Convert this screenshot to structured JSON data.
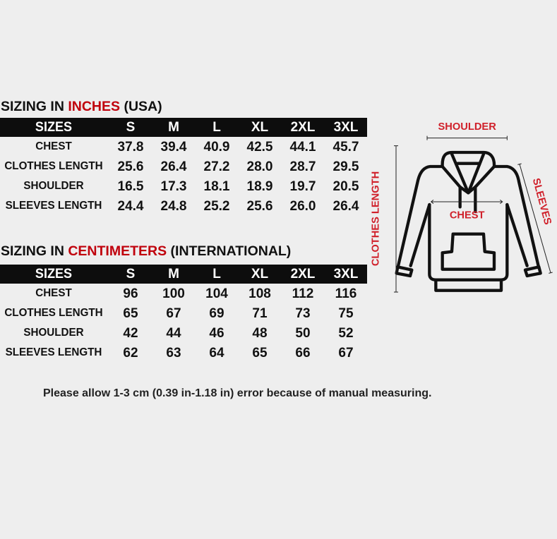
{
  "inches": {
    "title_prefix": "SIZING IN ",
    "title_highlight": "INCHES",
    "title_suffix": " (USA)",
    "header": [
      "SIZES",
      "S",
      "M",
      "L",
      "XL",
      "2XL",
      "3XL"
    ],
    "rows": [
      {
        "label": "CHEST",
        "values": [
          "37.8",
          "39.4",
          "40.9",
          "42.5",
          "44.1",
          "45.7"
        ]
      },
      {
        "label": "CLOTHES LENGTH",
        "values": [
          "25.6",
          "26.4",
          "27.2",
          "28.0",
          "28.7",
          "29.5"
        ]
      },
      {
        "label": "SHOULDER",
        "values": [
          "16.5",
          "17.3",
          "18.1",
          "18.9",
          "19.7",
          "20.5"
        ]
      },
      {
        "label": "SLEEVES LENGTH",
        "values": [
          "24.4",
          "24.8",
          "25.2",
          "25.6",
          "26.0",
          "26.4"
        ]
      }
    ]
  },
  "centimeters": {
    "title_prefix": "SIZING IN ",
    "title_highlight": "CENTIMETERS",
    "title_suffix": " (INTERNATIONAL)",
    "header": [
      "SIZES",
      "S",
      "M",
      "L",
      "XL",
      "2XL",
      "3XL"
    ],
    "rows": [
      {
        "label": "CHEST",
        "values": [
          "96",
          "100",
          "104",
          "108",
          "112",
          "116"
        ]
      },
      {
        "label": "CLOTHES LENGTH",
        "values": [
          "65",
          "67",
          "69",
          "71",
          "73",
          "75"
        ]
      },
      {
        "label": "SHOULDER",
        "values": [
          "42",
          "44",
          "46",
          "48",
          "50",
          "52"
        ]
      },
      {
        "label": "SLEEVES LENGTH",
        "values": [
          "62",
          "63",
          "64",
          "65",
          "66",
          "67"
        ]
      }
    ]
  },
  "diagram": {
    "shoulder": "SHOULDER",
    "chest": "CHEST",
    "clothes_length": "CLOTHES LENGTH",
    "sleeves": "SLEEVES"
  },
  "note": "Please allow 1-3 cm (0.39 in-1.18 in) error because of manual measuring.",
  "colors": {
    "accent": "#c0000c",
    "diagram_label": "#d0202a",
    "header_bg": "#0d0d0d",
    "background": "#eeeeee"
  },
  "icons": [
    "hoodie-diagram-icon"
  ]
}
